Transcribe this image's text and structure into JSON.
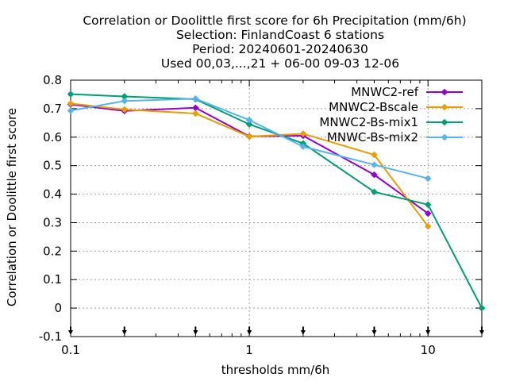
{
  "chart_data": {
    "type": "line",
    "title_lines": [
      "Correlation or Doolittle first score  for 6h Precipitation (mm/6h)",
      "Selection: FinlandCoast      6 stations",
      "Period: 20240601-20240630",
      "Used 00,03,...,21 + 06-00 09-03 12-06"
    ],
    "xlabel": "thresholds mm/6h",
    "ylabel": "Correlation or Doolittle first score",
    "x_scale": "log",
    "xlim": [
      0.1,
      20
    ],
    "ylim": [
      -0.1,
      0.8
    ],
    "x_ticks": [
      {
        "value": 0.1,
        "label": "0.1"
      },
      {
        "value": 1,
        "label": "1"
      },
      {
        "value": 10,
        "label": "10"
      }
    ],
    "y_ticks": [
      {
        "value": -0.1,
        "label": "-0.1"
      },
      {
        "value": 0,
        "label": "0"
      },
      {
        "value": 0.1,
        "label": "0.1"
      },
      {
        "value": 0.2,
        "label": "0.2"
      },
      {
        "value": 0.3,
        "label": "0.3"
      },
      {
        "value": 0.4,
        "label": "0.4"
      },
      {
        "value": 0.5,
        "label": "0.5"
      },
      {
        "value": 0.6,
        "label": "0.6"
      },
      {
        "value": 0.7,
        "label": "0.7"
      },
      {
        "value": 0.8,
        "label": "0.8"
      }
    ],
    "grid": true,
    "legend_position": "top-right",
    "threshold_markers_x": [
      0.1,
      0.2,
      0.5,
      1,
      2,
      5,
      10,
      20
    ],
    "series": [
      {
        "name": "MNWC2-ref",
        "color": "#9400d3",
        "x": [
          0.1,
          0.2,
          0.5,
          1,
          2,
          5,
          10
        ],
        "y": [
          0.715,
          0.692,
          0.703,
          0.603,
          0.605,
          0.468,
          0.332
        ]
      },
      {
        "name": "MNWC2-Bscale",
        "color": "#e69f00",
        "x": [
          0.1,
          0.2,
          0.5,
          1,
          2,
          5,
          10
        ],
        "y": [
          0.718,
          0.697,
          0.683,
          0.602,
          0.612,
          0.538,
          0.287
        ]
      },
      {
        "name": "MNWC2-Bs-mix1",
        "color": "#009e73",
        "x": [
          0.1,
          0.2,
          0.5,
          1,
          2,
          5,
          10,
          20
        ],
        "y": [
          0.751,
          0.743,
          0.733,
          0.645,
          0.578,
          0.408,
          0.363,
          0.0
        ]
      },
      {
        "name": "MNWC-Bs-mix2",
        "color": "#56b4e9",
        "x": [
          0.1,
          0.2,
          0.5,
          1,
          2,
          5,
          10
        ],
        "y": [
          0.693,
          0.727,
          0.735,
          0.66,
          0.567,
          0.503,
          0.455
        ]
      }
    ]
  }
}
